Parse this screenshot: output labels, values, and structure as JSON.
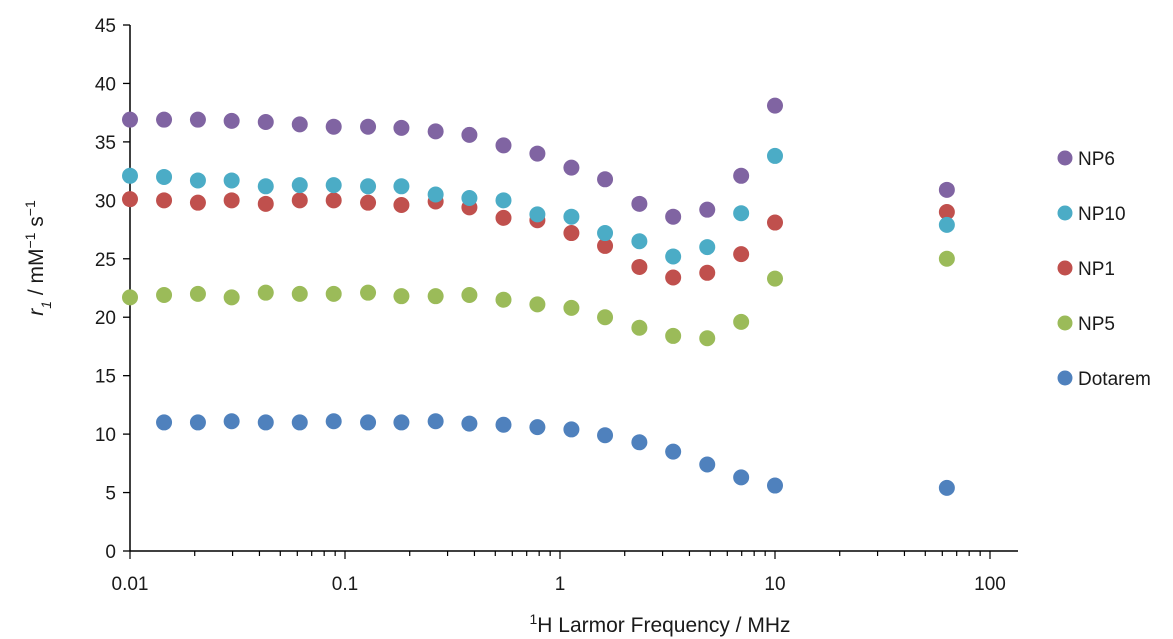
{
  "chart_data": {
    "type": "scatter",
    "title": "",
    "xlabel": {
      "sup": "1",
      "text": "H Larmor Frequency / MHz"
    },
    "ylabel": {
      "var": "r",
      "sub": "1",
      "mid": " / mM",
      "sup1": "−1",
      "tail": " s",
      "sup2": "−1"
    },
    "x_scale": "log",
    "xlim": [
      0.01,
      100
    ],
    "ylim": [
      0,
      45
    ],
    "x_ticks": [
      0.01,
      0.1,
      1,
      10,
      100
    ],
    "x_tick_labels": [
      "0.01",
      "0.1",
      "1",
      "10",
      "100"
    ],
    "y_ticks": [
      0,
      5,
      10,
      15,
      20,
      25,
      30,
      35,
      40,
      45
    ],
    "y_tick_labels": [
      "0",
      "5",
      "10",
      "15",
      "20",
      "25",
      "30",
      "35",
      "40",
      "45"
    ],
    "grid": false,
    "legend_position": "right",
    "series": [
      {
        "name": "NP6",
        "color": "#8064A2",
        "x": [
          0.01,
          0.0144,
          0.0207,
          0.0297,
          0.0428,
          0.0616,
          0.0886,
          0.128,
          0.183,
          0.264,
          0.379,
          0.546,
          0.785,
          1.13,
          1.62,
          2.34,
          3.36,
          4.84,
          6.96,
          10,
          63
        ],
        "y": [
          36.9,
          36.9,
          36.9,
          36.8,
          36.7,
          36.5,
          36.3,
          36.3,
          36.2,
          35.9,
          35.6,
          34.7,
          34.0,
          32.8,
          31.8,
          29.7,
          28.6,
          29.2,
          32.1,
          38.1,
          30.9
        ]
      },
      {
        "name": "NP10",
        "color": "#4BACC6",
        "x": [
          0.01,
          0.0144,
          0.0207,
          0.0297,
          0.0428,
          0.0616,
          0.0886,
          0.128,
          0.183,
          0.264,
          0.379,
          0.546,
          0.785,
          1.13,
          1.62,
          2.34,
          3.36,
          4.84,
          6.96,
          10,
          63
        ],
        "y": [
          32.1,
          32.0,
          31.7,
          31.7,
          31.2,
          31.3,
          31.3,
          31.2,
          31.2,
          30.5,
          30.2,
          30.0,
          28.8,
          28.6,
          27.2,
          26.5,
          25.2,
          26.0,
          28.9,
          33.8,
          27.9
        ]
      },
      {
        "name": "NP1",
        "color": "#C0504D",
        "x": [
          0.01,
          0.0144,
          0.0207,
          0.0297,
          0.0428,
          0.0616,
          0.0886,
          0.128,
          0.183,
          0.264,
          0.379,
          0.546,
          0.785,
          1.13,
          1.62,
          2.34,
          3.36,
          4.84,
          6.96,
          10,
          63
        ],
        "y": [
          30.1,
          30.0,
          29.8,
          30.0,
          29.7,
          30.0,
          30.0,
          29.8,
          29.6,
          29.9,
          29.4,
          28.5,
          28.3,
          27.2,
          26.1,
          24.3,
          23.4,
          23.8,
          25.4,
          28.1,
          29.0
        ]
      },
      {
        "name": "NP5",
        "color": "#9BBB59",
        "x": [
          0.01,
          0.0144,
          0.0207,
          0.0297,
          0.0428,
          0.0616,
          0.0886,
          0.128,
          0.183,
          0.264,
          0.379,
          0.546,
          0.785,
          1.13,
          1.62,
          2.34,
          3.36,
          4.84,
          6.96,
          10,
          63
        ],
        "y": [
          21.7,
          21.9,
          22.0,
          21.7,
          22.1,
          22.0,
          22.0,
          22.1,
          21.8,
          21.8,
          21.9,
          21.5,
          21.1,
          20.8,
          20.0,
          19.1,
          18.4,
          18.2,
          19.6,
          23.3,
          25.0
        ]
      },
      {
        "name": "Dotarem",
        "color": "#4F81BD",
        "x": [
          0.0144,
          0.0207,
          0.0297,
          0.0428,
          0.0616,
          0.0886,
          0.128,
          0.183,
          0.264,
          0.379,
          0.546,
          0.785,
          1.13,
          1.62,
          2.34,
          3.36,
          4.84,
          6.96,
          10,
          63
        ],
        "y": [
          11.0,
          11.0,
          11.1,
          11.0,
          11.0,
          11.1,
          11.0,
          11.0,
          11.1,
          10.9,
          10.8,
          10.6,
          10.4,
          9.9,
          9.3,
          8.5,
          7.4,
          6.3,
          5.6,
          5.4
        ]
      }
    ]
  }
}
